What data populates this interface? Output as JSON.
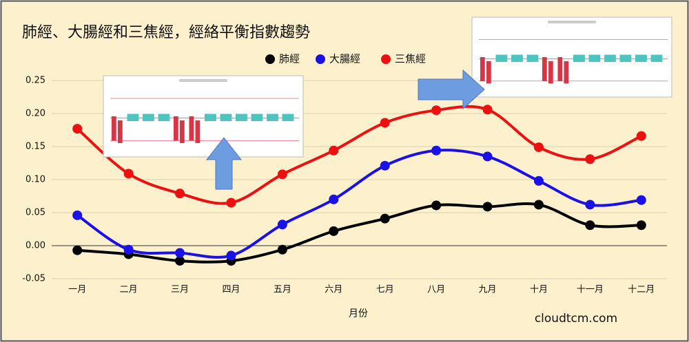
{
  "chart_data": {
    "type": "line",
    "title": "肺經、大腸經和三焦經，經絡平衡指數趨勢",
    "x_label": "月份",
    "watermark": "cloudtcm.com",
    "categories": [
      "一月",
      "二月",
      "三月",
      "四月",
      "五月",
      "六月",
      "七月",
      "八月",
      "九月",
      "十月",
      "十一月",
      "十二月"
    ],
    "series": [
      {
        "name": "肺經",
        "color": "#000000",
        "values": [
          -0.007,
          -0.013,
          -0.023,
          -0.023,
          -0.006,
          0.022,
          0.041,
          0.061,
          0.059,
          0.062,
          0.031,
          0.031
        ]
      },
      {
        "name": "大腸經",
        "color": "#1a10e8",
        "values": [
          0.046,
          -0.006,
          -0.011,
          -0.015,
          0.032,
          0.07,
          0.121,
          0.144,
          0.135,
          0.098,
          0.062,
          0.069
        ]
      },
      {
        "name": "三焦經",
        "color": "#ee1010",
        "values": [
          0.177,
          0.109,
          0.079,
          0.065,
          0.108,
          0.144,
          0.186,
          0.205,
          0.206,
          0.149,
          0.131,
          0.166
        ]
      }
    ],
    "ylim": [
      -0.05,
      0.25
    ],
    "yticks": [
      {
        "value": -0.05,
        "label": "-0.05"
      },
      {
        "value": 0,
        "label": "0.00"
      },
      {
        "value": 0.05,
        "label": "0.05"
      },
      {
        "value": 0.1,
        "label": "0.10"
      },
      {
        "value": 0.15,
        "label": "0.15"
      },
      {
        "value": 0.2,
        "label": "0.20"
      },
      {
        "value": 0.25,
        "label": "0.25"
      }
    ],
    "grid": true
  }
}
